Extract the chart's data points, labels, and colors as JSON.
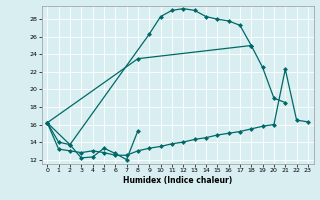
{
  "xlabel": "Humidex (Indice chaleur)",
  "xlim": [
    -0.5,
    23.5
  ],
  "ylim": [
    11.5,
    29.5
  ],
  "yticks": [
    12,
    14,
    16,
    18,
    20,
    22,
    24,
    26,
    28
  ],
  "xticks": [
    0,
    1,
    2,
    3,
    4,
    5,
    6,
    7,
    8,
    9,
    10,
    11,
    12,
    13,
    14,
    15,
    16,
    17,
    18,
    19,
    20,
    21,
    22,
    23
  ],
  "line_color": "#006868",
  "bg_color": "#d8eef0",
  "grid_color": "#b8d8dc",
  "line1_x": [
    0,
    1,
    2,
    9,
    10,
    11,
    12,
    13,
    14,
    15,
    16,
    17,
    18,
    19,
    20,
    21
  ],
  "line1_y": [
    16.2,
    14.0,
    13.7,
    26.3,
    28.3,
    29.0,
    29.2,
    29.0,
    28.3,
    28.0,
    27.8,
    27.3,
    25.0,
    22.5,
    19.0,
    18.5
  ],
  "line2_x": [
    0,
    8,
    18
  ],
  "line2_y": [
    16.2,
    23.5,
    25.0
  ],
  "line3_x": [
    0,
    2,
    3,
    4,
    5,
    6,
    7,
    8
  ],
  "line3_y": [
    16.2,
    13.7,
    12.2,
    12.3,
    13.3,
    12.7,
    12.0,
    15.3
  ],
  "line4_x": [
    0,
    1,
    2,
    3,
    4,
    5,
    6,
    7,
    8,
    9,
    10,
    11,
    12,
    13,
    14,
    15,
    16,
    17,
    18,
    19,
    20,
    21,
    22,
    23
  ],
  "line4_y": [
    16.2,
    13.2,
    13.0,
    12.8,
    13.0,
    12.8,
    12.5,
    12.5,
    13.0,
    13.3,
    13.5,
    13.8,
    14.0,
    14.3,
    14.5,
    14.8,
    15.0,
    15.2,
    15.5,
    15.8,
    16.0,
    22.3,
    16.5,
    16.3
  ]
}
